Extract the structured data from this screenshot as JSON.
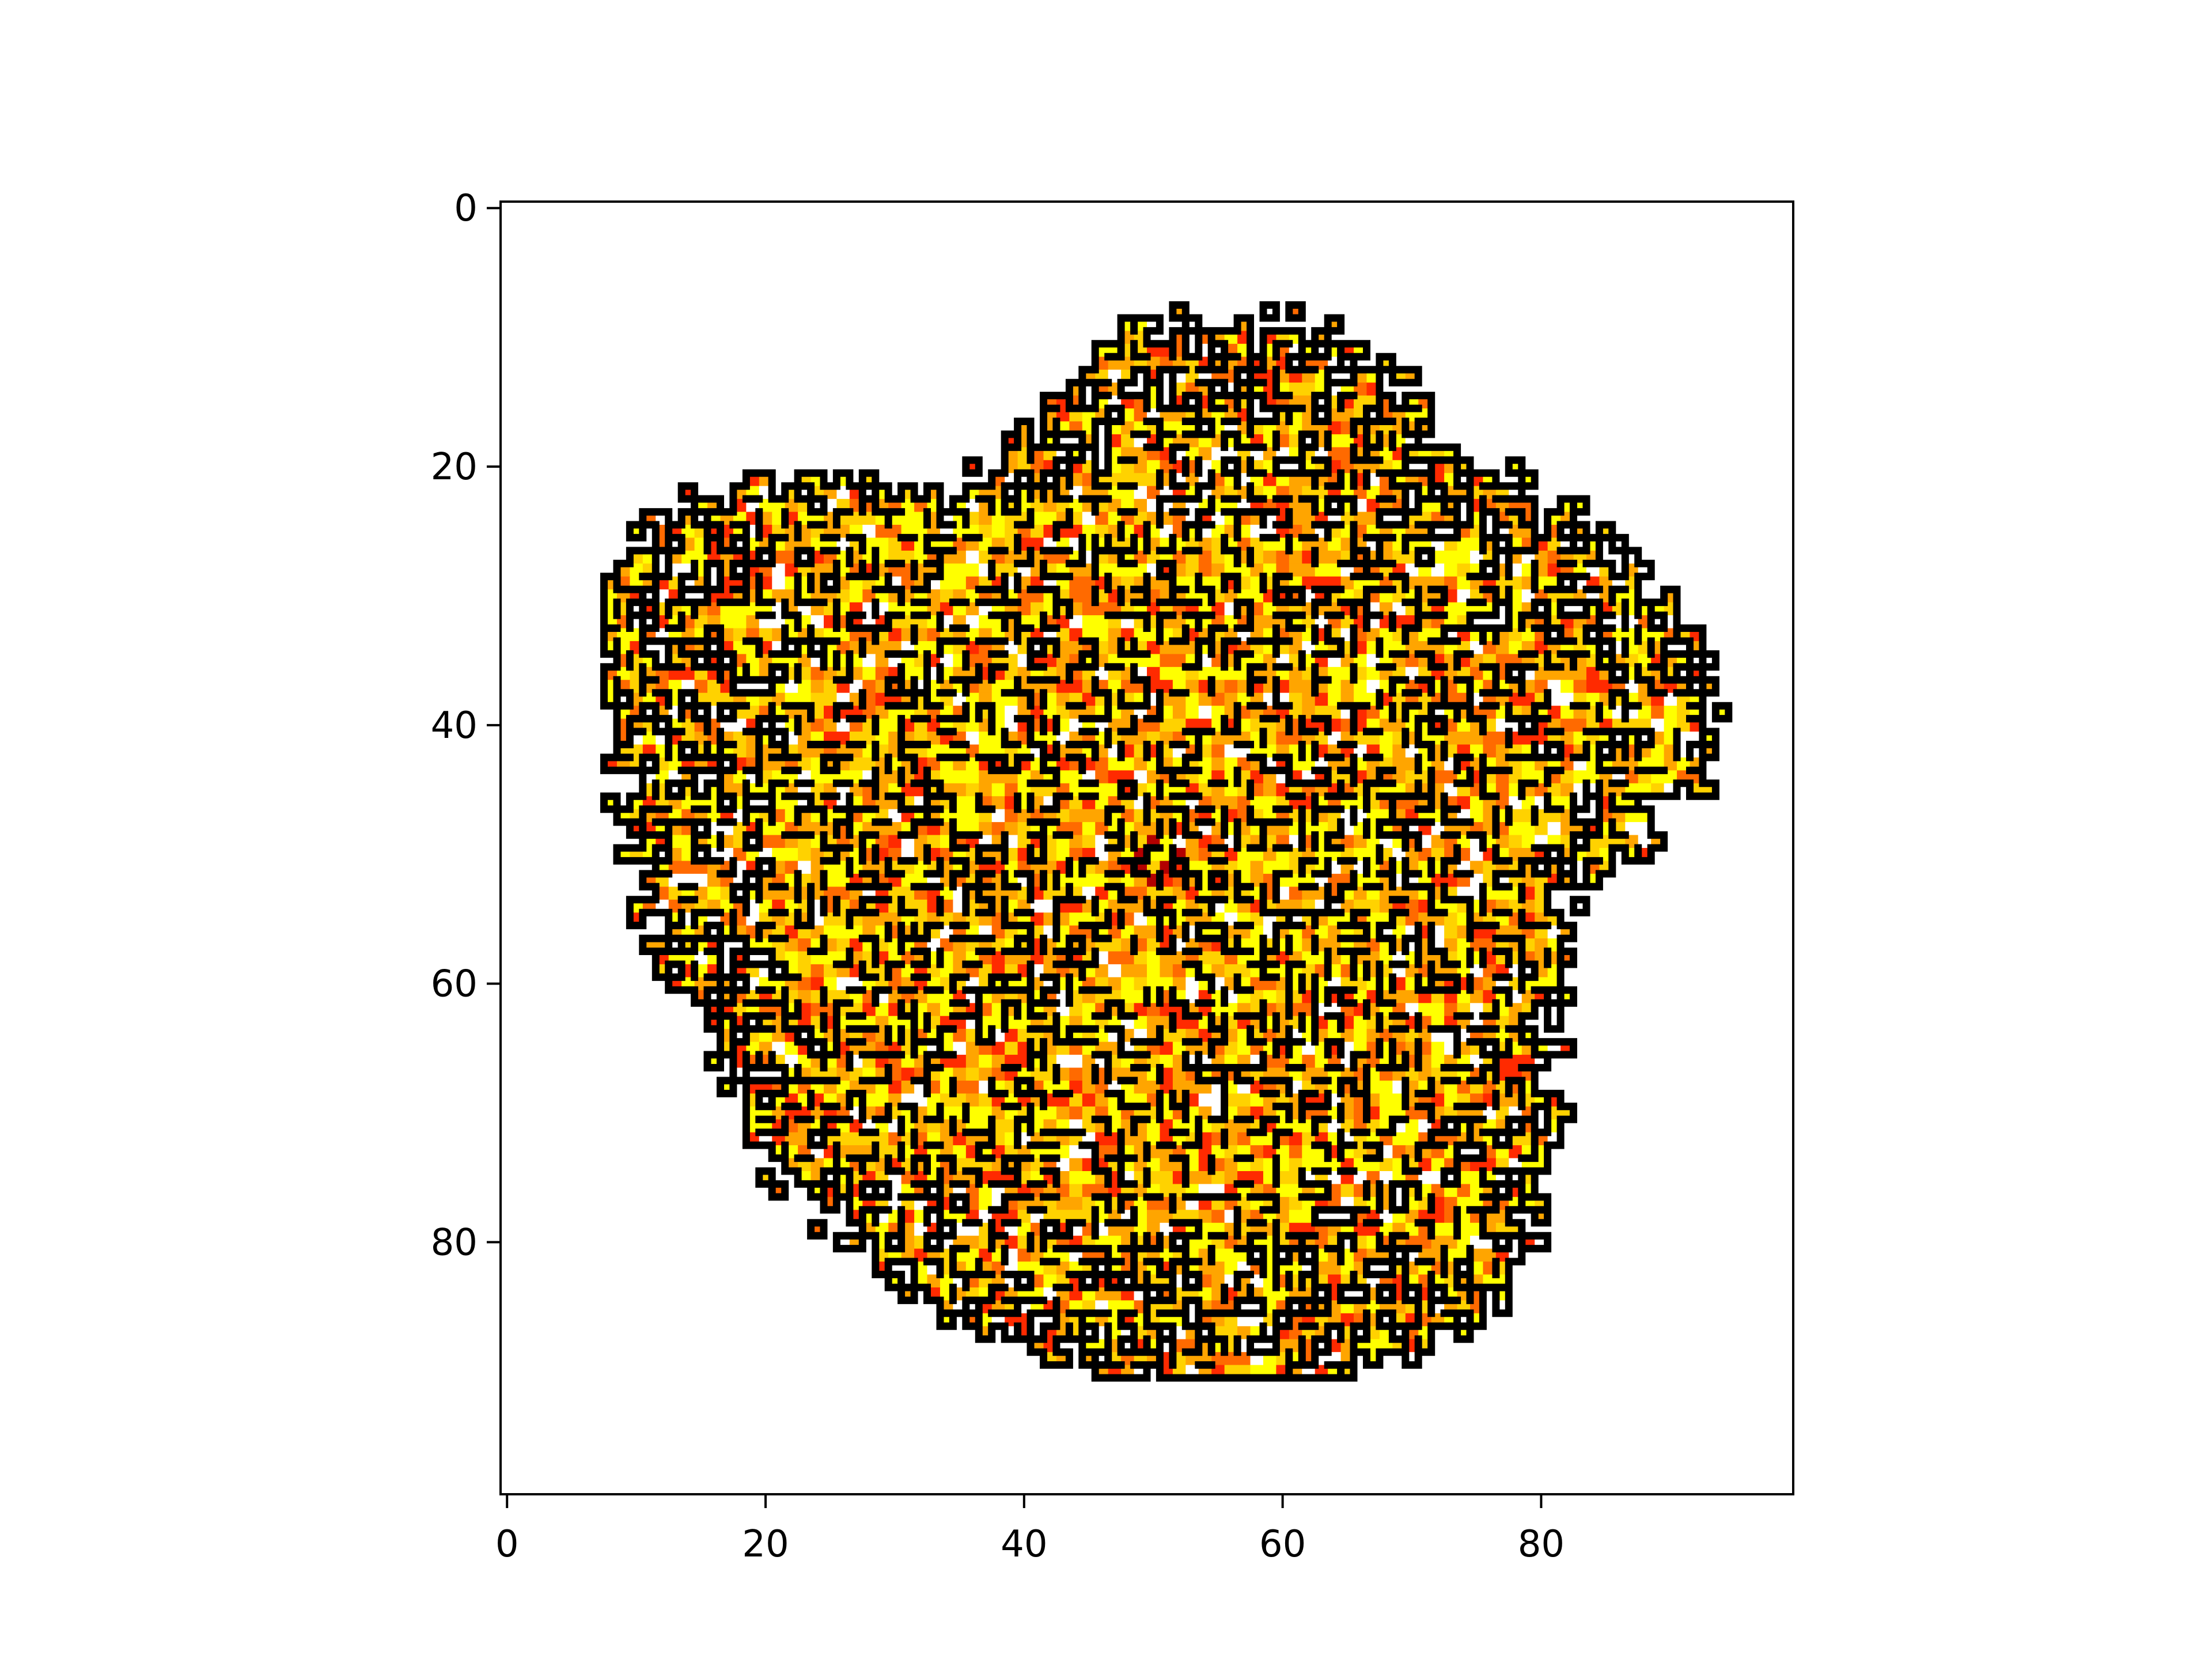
{
  "chart_data": {
    "type": "heatmap",
    "title": "",
    "xlabel": "",
    "ylabel": "",
    "grid_size": [
      100,
      100
    ],
    "xlim": [
      -0.5,
      99.5
    ],
    "ylim": [
      99.5,
      -0.5
    ],
    "y_inverted": true,
    "xticks": [
      0,
      20,
      40,
      60,
      80
    ],
    "yticks": [
      0,
      20,
      40,
      60,
      80
    ],
    "xtick_labels": [
      "0",
      "20",
      "40",
      "60",
      "80"
    ],
    "ytick_labels": [
      "0",
      "20",
      "40",
      "60",
      "80"
    ],
    "grid": false,
    "legend": "none",
    "colormap": [
      "#ffffff",
      "#ffff00",
      "#ffd200",
      "#ffa500",
      "#ff6a00",
      "#ff2a00",
      "#b30000"
    ],
    "boundary_color": "#000000",
    "cluster_center": [
      50,
      50
    ],
    "cluster_extent": {
      "x": [
        8,
        94
      ],
      "y": [
        8,
        90
      ]
    },
    "center_value_color": "#b30000"
  }
}
